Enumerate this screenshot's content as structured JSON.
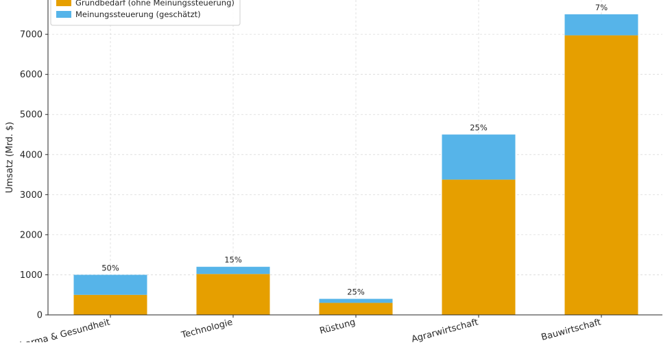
{
  "chart_data": {
    "type": "bar",
    "stacked": true,
    "title": "",
    "xlabel": "",
    "ylabel": "Umsatz (Mrd. $)",
    "categories": [
      "Pharma & Gesundheit",
      "Technologie",
      "Rüstung",
      "Agrarwirtschaft",
      "Bauwirtschaft"
    ],
    "visible_category_labels": [
      "Pharma & Gesundheit",
      "Technologie",
      "Rüstung",
      "Agrarwirtschaft",
      "Bauwirtschaft"
    ],
    "series": [
      {
        "name": "Grundbedarf (ohne Meinungssteuerung)",
        "color": "#E69F00",
        "values": [
          500,
          1020,
          300,
          3375,
          6975
        ]
      },
      {
        "name": "Meinungssteuerung (geschätzt)",
        "color": "#56B4E9",
        "values": [
          500,
          180,
          100,
          1125,
          525
        ]
      }
    ],
    "totals": [
      1000,
      1200,
      400,
      4500,
      7500
    ],
    "percent_labels": [
      "50%",
      "15%",
      "25%",
      "25%",
      "7%"
    ],
    "ylim": [
      0,
      7600
    ],
    "yticks": [
      0,
      1000,
      2000,
      3000,
      4000,
      5000,
      6000,
      7000
    ],
    "grid": true,
    "legend_position": "top-left"
  }
}
